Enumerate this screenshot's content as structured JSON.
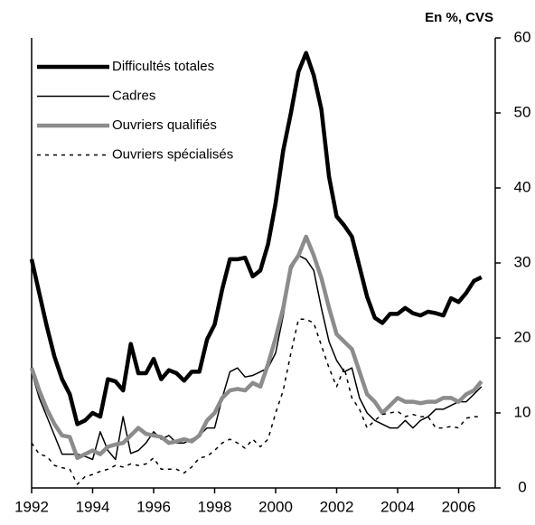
{
  "chart_data": {
    "type": "line",
    "unit_label": "En %, CVS",
    "x": [
      1992,
      1992.25,
      1992.5,
      1992.75,
      1993,
      1993.25,
      1993.5,
      1993.75,
      1994,
      1994.25,
      1994.5,
      1994.75,
      1995,
      1995.25,
      1995.5,
      1995.75,
      1996,
      1996.25,
      1996.5,
      1996.75,
      1997,
      1997.25,
      1997.5,
      1997.75,
      1998,
      1998.25,
      1998.5,
      1998.75,
      1999,
      1999.25,
      1999.5,
      1999.75,
      2000,
      2000.25,
      2000.5,
      2000.75,
      2001,
      2001.25,
      2001.5,
      2001.75,
      2002,
      2002.25,
      2002.5,
      2002.75,
      2003,
      2003.25,
      2003.5,
      2003.75,
      2004,
      2004.25,
      2004.5,
      2004.75,
      2005,
      2005.25,
      2005.5,
      2005.75,
      2006,
      2006.25,
      2006.5,
      2006.75
    ],
    "series": [
      {
        "name": "Difficultés totales",
        "color": "#000000",
        "width": 4.5,
        "dashed": false,
        "values": [
          30.5,
          26,
          21.5,
          17.5,
          14.5,
          12.5,
          8.5,
          9,
          10,
          9.5,
          14.5,
          14.2,
          13,
          19.2,
          15.3,
          15.3,
          17.2,
          14.5,
          15.7,
          15.3,
          14.3,
          15.5,
          15.5,
          19.8,
          21.8,
          26.5,
          30.5,
          30.5,
          30.7,
          28.2,
          29,
          32.5,
          38,
          45,
          50,
          55.5,
          58,
          55,
          50.5,
          41.5,
          36.2,
          35,
          33.5,
          29.5,
          25.5,
          22.7,
          22,
          23.2,
          23.2,
          24,
          23.3,
          23,
          23.5,
          23.3,
          23,
          25.3,
          24.8,
          26,
          27.6,
          28.1
        ]
      },
      {
        "name": "Cadres",
        "color": "#000000",
        "width": 1.5,
        "dashed": false,
        "values": [
          15.5,
          12,
          9.5,
          7,
          4.5,
          4.5,
          4.5,
          4.2,
          3.8,
          7.5,
          5,
          3.8,
          9.5,
          4.6,
          5,
          6,
          7.5,
          6.5,
          7,
          6,
          6,
          6.5,
          7,
          8,
          8,
          12,
          15.5,
          16,
          14.8,
          15,
          15.5,
          16,
          18,
          23,
          29,
          31,
          30.5,
          29,
          24,
          19.5,
          17,
          15.5,
          16,
          12,
          10,
          9,
          8.5,
          8,
          8,
          9,
          8,
          9,
          9.5,
          10.5,
          10.5,
          11,
          11.5,
          11.5,
          12.5,
          13.5
        ]
      },
      {
        "name": "Ouvriers qualifiés",
        "color": "#8c8c8c",
        "width": 4.5,
        "dashed": false,
        "values": [
          16,
          13,
          10.5,
          8.5,
          7,
          6.8,
          4,
          4.5,
          5,
          4.5,
          5.5,
          5.8,
          6,
          7,
          8,
          7.2,
          7,
          6.8,
          6,
          6.2,
          6.5,
          6.2,
          7,
          9,
          10,
          12,
          13,
          13.2,
          13,
          14,
          13.5,
          16.5,
          20,
          24,
          29.5,
          31,
          33.5,
          31,
          28,
          24,
          20.5,
          19.5,
          18.5,
          15.5,
          12.5,
          11.5,
          10,
          11,
          12,
          11.5,
          11.5,
          11.3,
          11.5,
          11.5,
          12,
          12,
          11.5,
          12.5,
          13,
          14.2
        ]
      },
      {
        "name": "Ouvriers spécialisés",
        "color": "#000000",
        "width": 1.5,
        "dashed": true,
        "values": [
          6,
          4.5,
          4.2,
          3,
          2.7,
          2.5,
          0.5,
          1.5,
          1.8,
          2.2,
          2.5,
          3,
          2.8,
          3.2,
          3,
          3.2,
          4,
          2.5,
          2.5,
          2.5,
          2,
          2.8,
          4,
          4.2,
          5,
          6,
          6.5,
          6,
          5.3,
          6.5,
          5.5,
          6.5,
          10,
          13,
          18,
          22.5,
          22.5,
          22,
          19,
          16,
          13.5,
          16,
          12,
          10.5,
          8,
          9,
          9.8,
          10,
          10.2,
          9.5,
          9.8,
          9.5,
          9.5,
          8,
          8,
          8.2,
          8,
          9.3,
          9.5,
          9.5
        ]
      }
    ],
    "xlim": [
      1992,
      2007.2
    ],
    "xticks": [
      1992,
      1994,
      1996,
      1998,
      2000,
      2002,
      2004,
      2006
    ],
    "ylim": [
      0,
      60
    ],
    "yticks": [
      0,
      10,
      20,
      30,
      40,
      50,
      60
    ],
    "y_axis_side": "right",
    "legend": "top-left",
    "grid": false
  }
}
